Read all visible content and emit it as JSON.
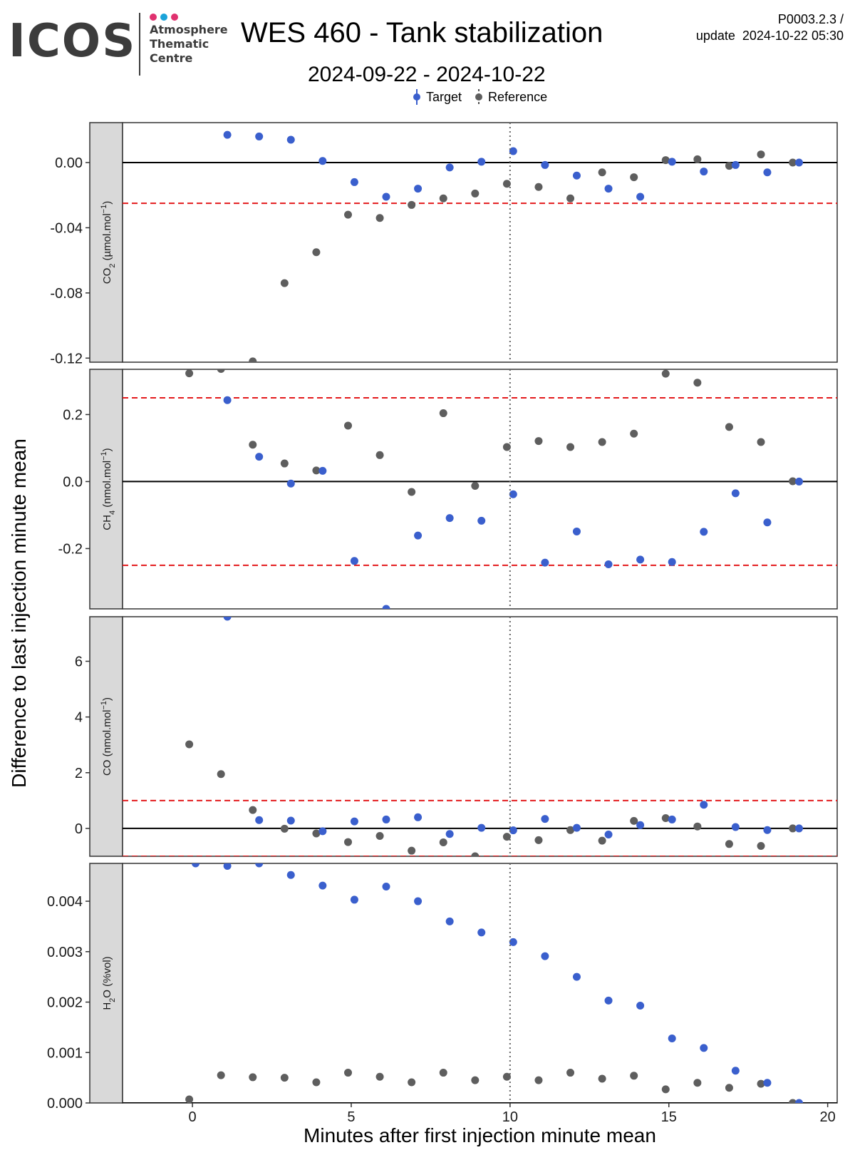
{
  "header": {
    "logo_text": "ICOS",
    "logo_lines": [
      "Atmosphere",
      "Thematic",
      "Centre"
    ],
    "title": "WES 460 - Tank stabilization",
    "subtitle": "2024-09-22 - 2024-10-22",
    "version": "P0003.2.3 /",
    "update": "update  2024-10-22 05:30"
  },
  "legend": {
    "target_label": "Target",
    "reference_label": "Reference"
  },
  "colors": {
    "target": "#3a5fcd",
    "reference": "#5e5e5e",
    "threshold": "#e31a1c",
    "strip_bg": "#d9d9d9",
    "logo_dots": [
      "#e0316f",
      "#1aa3d9",
      "#e0316f"
    ]
  },
  "chart_data": {
    "type": "scatter",
    "xlabel": "Minutes after first injection minute mean",
    "ylabel": "Difference to last injection minute mean",
    "xlim": [
      -2.2,
      20.3
    ],
    "xticks": [
      0,
      5,
      10,
      15,
      20
    ],
    "vline": 10,
    "panels": [
      {
        "label_parts": [
          {
            "t": "CO"
          },
          {
            "t": "2",
            "sub": true
          },
          {
            "t": " (µmol.mol"
          },
          {
            "t": "−1",
            "sup": true
          },
          {
            "t": ")"
          }
        ],
        "ylim": [
          -0.1225,
          0.0245
        ],
        "yticks": [
          0.0,
          -0.04,
          -0.08,
          -0.12
        ],
        "ytick_labels": [
          "0.00",
          "-0.04",
          "-0.08",
          "-0.12"
        ],
        "thresholds": [
          0.025,
          -0.025
        ],
        "target": {
          "x": [
            1.1,
            2.1,
            3.1,
            4.1,
            5.1,
            6.1,
            7.1,
            8.1,
            9.1,
            10.1,
            11.1,
            12.1,
            13.1,
            14.1,
            15.1,
            16.1,
            17.1,
            18.1,
            19.1
          ],
          "y": [
            0.017,
            0.016,
            0.014,
            0.001,
            -0.012,
            -0.021,
            -0.016,
            -0.003,
            0.0005,
            0.007,
            -0.0015,
            -0.008,
            -0.016,
            -0.021,
            0.0005,
            -0.0055,
            -0.0015,
            -0.006,
            0.0
          ]
        },
        "reference": {
          "x": [
            1.9,
            2.9,
            3.9,
            4.9,
            5.9,
            6.9,
            7.9,
            8.9,
            9.9,
            10.9,
            11.9,
            12.9,
            13.9,
            14.9,
            15.9,
            16.9,
            17.9,
            18.9
          ],
          "y": [
            -0.122,
            -0.074,
            -0.055,
            -0.032,
            -0.034,
            -0.026,
            -0.022,
            -0.019,
            -0.013,
            -0.015,
            -0.022,
            -0.006,
            -0.009,
            0.0015,
            0.002,
            -0.002,
            0.005,
            0.0
          ]
        }
      },
      {
        "label_parts": [
          {
            "t": "CH"
          },
          {
            "t": "4",
            "sub": true
          },
          {
            "t": " (nmol.mol"
          },
          {
            "t": "−1",
            "sup": true
          },
          {
            "t": ")"
          }
        ],
        "ylim": [
          -0.38,
          0.335
        ],
        "yticks": [
          0.2,
          0.0,
          -0.2
        ],
        "ytick_labels": [
          "0.2",
          "0.0",
          "-0.2"
        ],
        "thresholds": [
          0.25,
          -0.25
        ],
        "target": {
          "x": [
            1.1,
            2.1,
            3.1,
            4.1,
            5.1,
            6.1,
            7.1,
            8.1,
            9.1,
            10.1,
            11.1,
            12.1,
            13.1,
            14.1,
            15.1,
            16.1,
            17.1,
            18.1,
            19.1
          ],
          "y": [
            0.243,
            0.074,
            -0.006,
            0.032,
            -0.237,
            -0.38,
            -0.161,
            -0.109,
            -0.117,
            -0.038,
            -0.242,
            -0.149,
            -0.247,
            -0.233,
            -0.24,
            -0.15,
            -0.035,
            -0.122,
            0.0
          ]
        },
        "reference": {
          "x": [
            -0.1,
            0.9,
            1.9,
            2.9,
            3.9,
            4.9,
            5.9,
            6.9,
            7.9,
            8.9,
            9.9,
            10.9,
            11.9,
            12.9,
            13.9,
            14.9,
            15.9,
            16.9,
            17.9,
            18.9
          ],
          "y": [
            0.323,
            0.336,
            0.11,
            0.054,
            0.033,
            0.167,
            0.079,
            -0.031,
            0.204,
            -0.013,
            0.103,
            0.121,
            0.103,
            0.118,
            0.143,
            0.322,
            0.295,
            0.163,
            0.118,
            0.001
          ]
        }
      },
      {
        "label_parts": [
          {
            "t": "CO (nmol.mol"
          },
          {
            "t": "−1",
            "sup": true
          },
          {
            "t": ")"
          }
        ],
        "ylim": [
          -1.0,
          7.6
        ],
        "yticks": [
          6,
          4,
          2,
          0
        ],
        "ytick_labels": [
          "6",
          "4",
          "2",
          "0"
        ],
        "thresholds": [
          1.0,
          -1.0
        ],
        "target": {
          "x": [
            1.1,
            2.1,
            3.1,
            4.1,
            5.1,
            6.1,
            7.1,
            8.1,
            9.1,
            10.1,
            11.1,
            12.1,
            13.1,
            14.1,
            15.1,
            16.1,
            17.1,
            18.1,
            19.1
          ],
          "y": [
            7.6,
            0.3,
            0.28,
            -0.1,
            0.25,
            0.32,
            0.4,
            -0.2,
            0.02,
            -0.07,
            0.34,
            0.02,
            -0.22,
            0.12,
            0.32,
            0.85,
            0.05,
            -0.06,
            0.0
          ]
        },
        "reference": {
          "x": [
            -0.1,
            0.9,
            1.9,
            2.9,
            3.9,
            4.9,
            5.9,
            6.9,
            7.9,
            8.9,
            9.9,
            10.9,
            11.9,
            12.9,
            13.9,
            14.9,
            15.9,
            16.9,
            17.9,
            18.9
          ],
          "y": [
            3.02,
            1.95,
            0.66,
            -0.01,
            -0.18,
            -0.49,
            -0.27,
            -0.8,
            -0.5,
            -1.0,
            -0.3,
            -0.42,
            -0.06,
            -0.44,
            0.27,
            0.37,
            0.07,
            -0.56,
            -0.63,
            0.0
          ]
        }
      },
      {
        "label_parts": [
          {
            "t": "H"
          },
          {
            "t": "2",
            "sub": true
          },
          {
            "t": "O (%vol)"
          }
        ],
        "ylim": [
          0.0,
          0.00475
        ],
        "yticks": [
          0.004,
          0.003,
          0.002,
          0.001,
          0.0
        ],
        "ytick_labels": [
          "0.004",
          "0.003",
          "0.002",
          "0.001",
          "0.000"
        ],
        "thresholds": [],
        "target": {
          "x": [
            0.1,
            1.1,
            2.1,
            3.1,
            4.1,
            5.1,
            6.1,
            7.1,
            8.1,
            9.1,
            10.1,
            11.1,
            12.1,
            13.1,
            14.1,
            15.1,
            16.1,
            17.1,
            18.1,
            19.1
          ],
          "y": [
            0.00475,
            0.0047,
            0.00475,
            0.00452,
            0.00431,
            0.00403,
            0.00429,
            0.004,
            0.0036,
            0.00338,
            0.00319,
            0.00291,
            0.0025,
            0.00203,
            0.00193,
            0.00128,
            0.00109,
            0.00064,
            0.0004,
            0.0
          ]
        },
        "reference": {
          "x": [
            -0.1,
            0.9,
            1.9,
            2.9,
            3.9,
            4.9,
            5.9,
            6.9,
            7.9,
            8.9,
            9.9,
            10.9,
            11.9,
            12.9,
            13.9,
            14.9,
            15.9,
            16.9,
            17.9,
            18.9
          ],
          "y": [
            7e-05,
            0.00055,
            0.00051,
            0.0005,
            0.00041,
            0.0006,
            0.00052,
            0.00041,
            0.0006,
            0.00045,
            0.00052,
            0.00045,
            0.0006,
            0.00048,
            0.00054,
            0.00027,
            0.0004,
            0.0003,
            0.00038,
            0.0
          ]
        }
      }
    ]
  }
}
